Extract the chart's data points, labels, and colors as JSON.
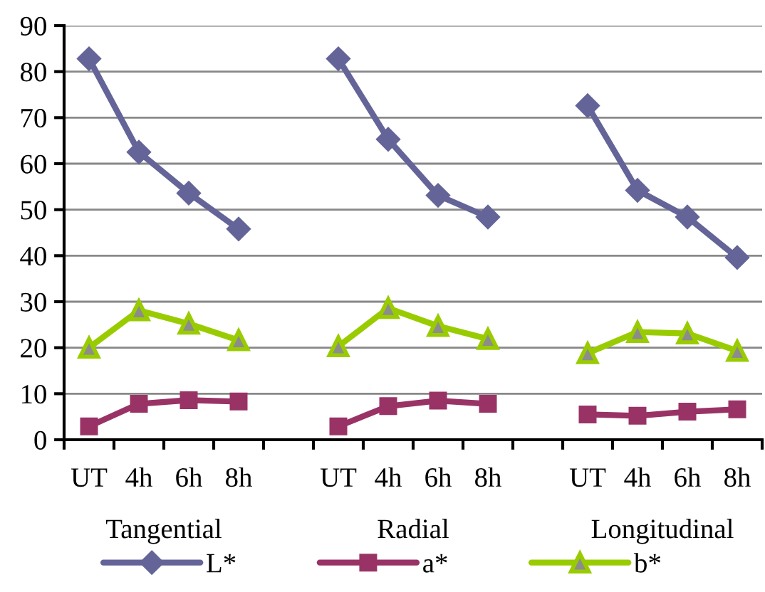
{
  "chart_data": {
    "type": "line",
    "categories": [
      "UT",
      "4h",
      "6h",
      "8h",
      null,
      "UT",
      "4h",
      "6h",
      "8h",
      null,
      "UT",
      "4h",
      "6h",
      "8h"
    ],
    "series": [
      {
        "name": "L*",
        "color": "#646499",
        "marker": "diamond",
        "values": [
          82.8,
          62.5,
          53.6,
          45.8,
          null,
          82.8,
          65.3,
          53.1,
          48.4,
          null,
          72.6,
          54.2,
          48.4,
          39.6
        ]
      },
      {
        "name": "a*",
        "color": "#993366",
        "marker": "square",
        "values": [
          2.9,
          7.8,
          8.6,
          8.3,
          null,
          2.9,
          7.3,
          8.5,
          7.8,
          null,
          5.5,
          5.2,
          6.1,
          6.6
        ]
      },
      {
        "name": "b*",
        "color": "#99cc00",
        "marker": "triangle",
        "values": [
          20.0,
          28.1,
          25.2,
          21.6,
          null,
          20.3,
          28.6,
          24.7,
          21.9,
          null,
          18.8,
          23.4,
          23.1,
          19.3
        ]
      }
    ],
    "annotations": [
      "Tangential",
      "Radial",
      "Longitudinal"
    ],
    "ylim": [
      0,
      90
    ],
    "yticks": [
      0,
      10,
      20,
      30,
      40,
      50,
      60,
      70,
      80,
      90
    ],
    "grid": "y",
    "legend": "bottom"
  }
}
